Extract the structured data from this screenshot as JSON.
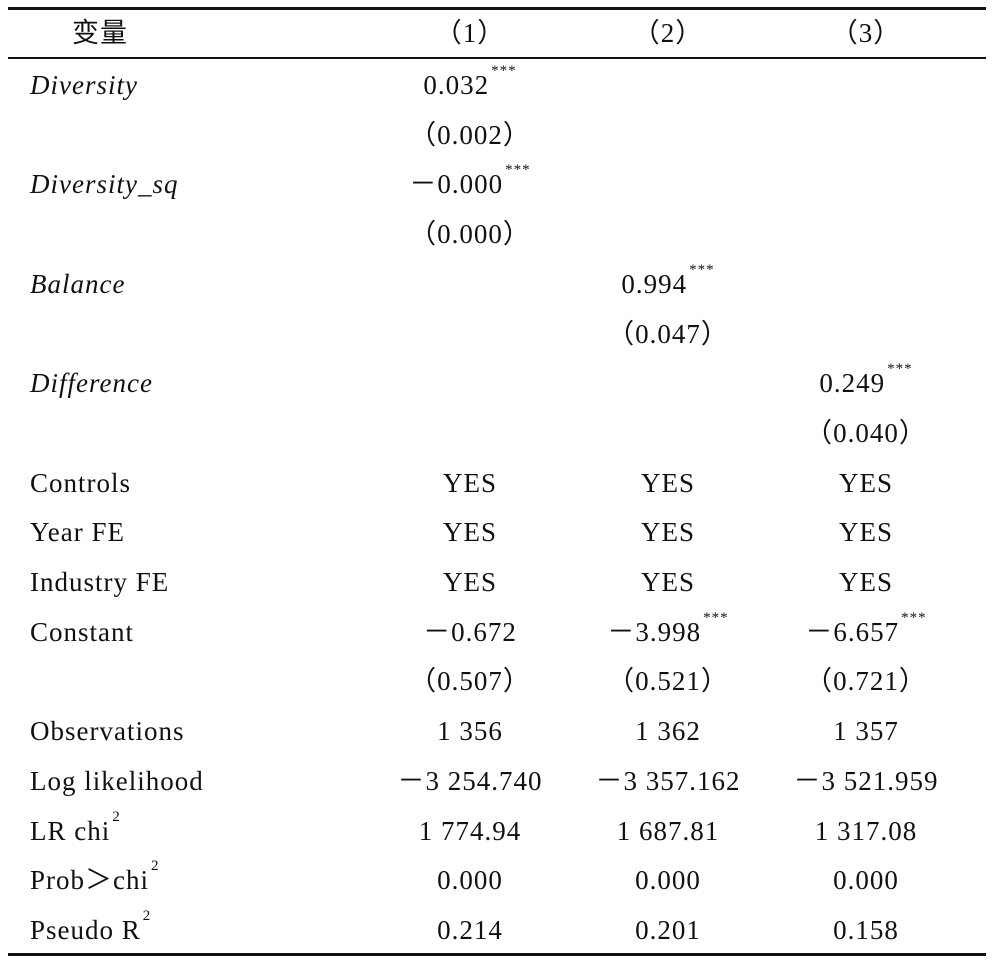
{
  "table": {
    "header": [
      "变量",
      "（1）",
      "（2）",
      "（3）"
    ],
    "rows": [
      [
        {
          "text": "Diversity",
          "italic": true
        },
        {
          "text": "0.032",
          "sup": "***"
        },
        null,
        null
      ],
      [
        null,
        "（0.002）",
        null,
        null
      ],
      [
        {
          "text": "Diversity_sq",
          "italic": true
        },
        {
          "text": "－0.000",
          "sup": "***"
        },
        null,
        null
      ],
      [
        null,
        "（0.000）",
        null,
        null
      ],
      [
        {
          "text": "Balance",
          "italic": true
        },
        null,
        {
          "text": "0.994",
          "sup": "***"
        },
        null
      ],
      [
        null,
        null,
        "（0.047）",
        null
      ],
      [
        {
          "text": "Difference",
          "italic": true
        },
        null,
        null,
        {
          "text": "0.249",
          "sup": "***"
        }
      ],
      [
        null,
        null,
        null,
        "（0.040）"
      ],
      [
        "Controls",
        "YES",
        "YES",
        "YES"
      ],
      [
        "Year FE",
        "YES",
        "YES",
        "YES"
      ],
      [
        "Industry FE",
        "YES",
        "YES",
        "YES"
      ],
      [
        "Constant",
        "－0.672",
        {
          "text": "－3.998",
          "sup": "***"
        },
        {
          "text": "－6.657",
          "sup": "***"
        }
      ],
      [
        null,
        "（0.507）",
        "（0.521）",
        "（0.721）"
      ],
      [
        "Observations",
        "1 356",
        "1 362",
        "1 357"
      ],
      [
        "Log likelihood",
        "－3 254.740",
        "－3 357.162",
        "－3 521.959"
      ],
      [
        {
          "text": "LR chi",
          "sup": "2"
        },
        "1 774.94",
        "1 687.81",
        "1 317.08"
      ],
      [
        {
          "text": "Prob＞chi",
          "sup": "2"
        },
        "0.000",
        "0.000",
        "0.000"
      ],
      [
        {
          "text": "Pseudo R",
          "sup": "2"
        },
        "0.214",
        "0.201",
        "0.158"
      ]
    ]
  }
}
